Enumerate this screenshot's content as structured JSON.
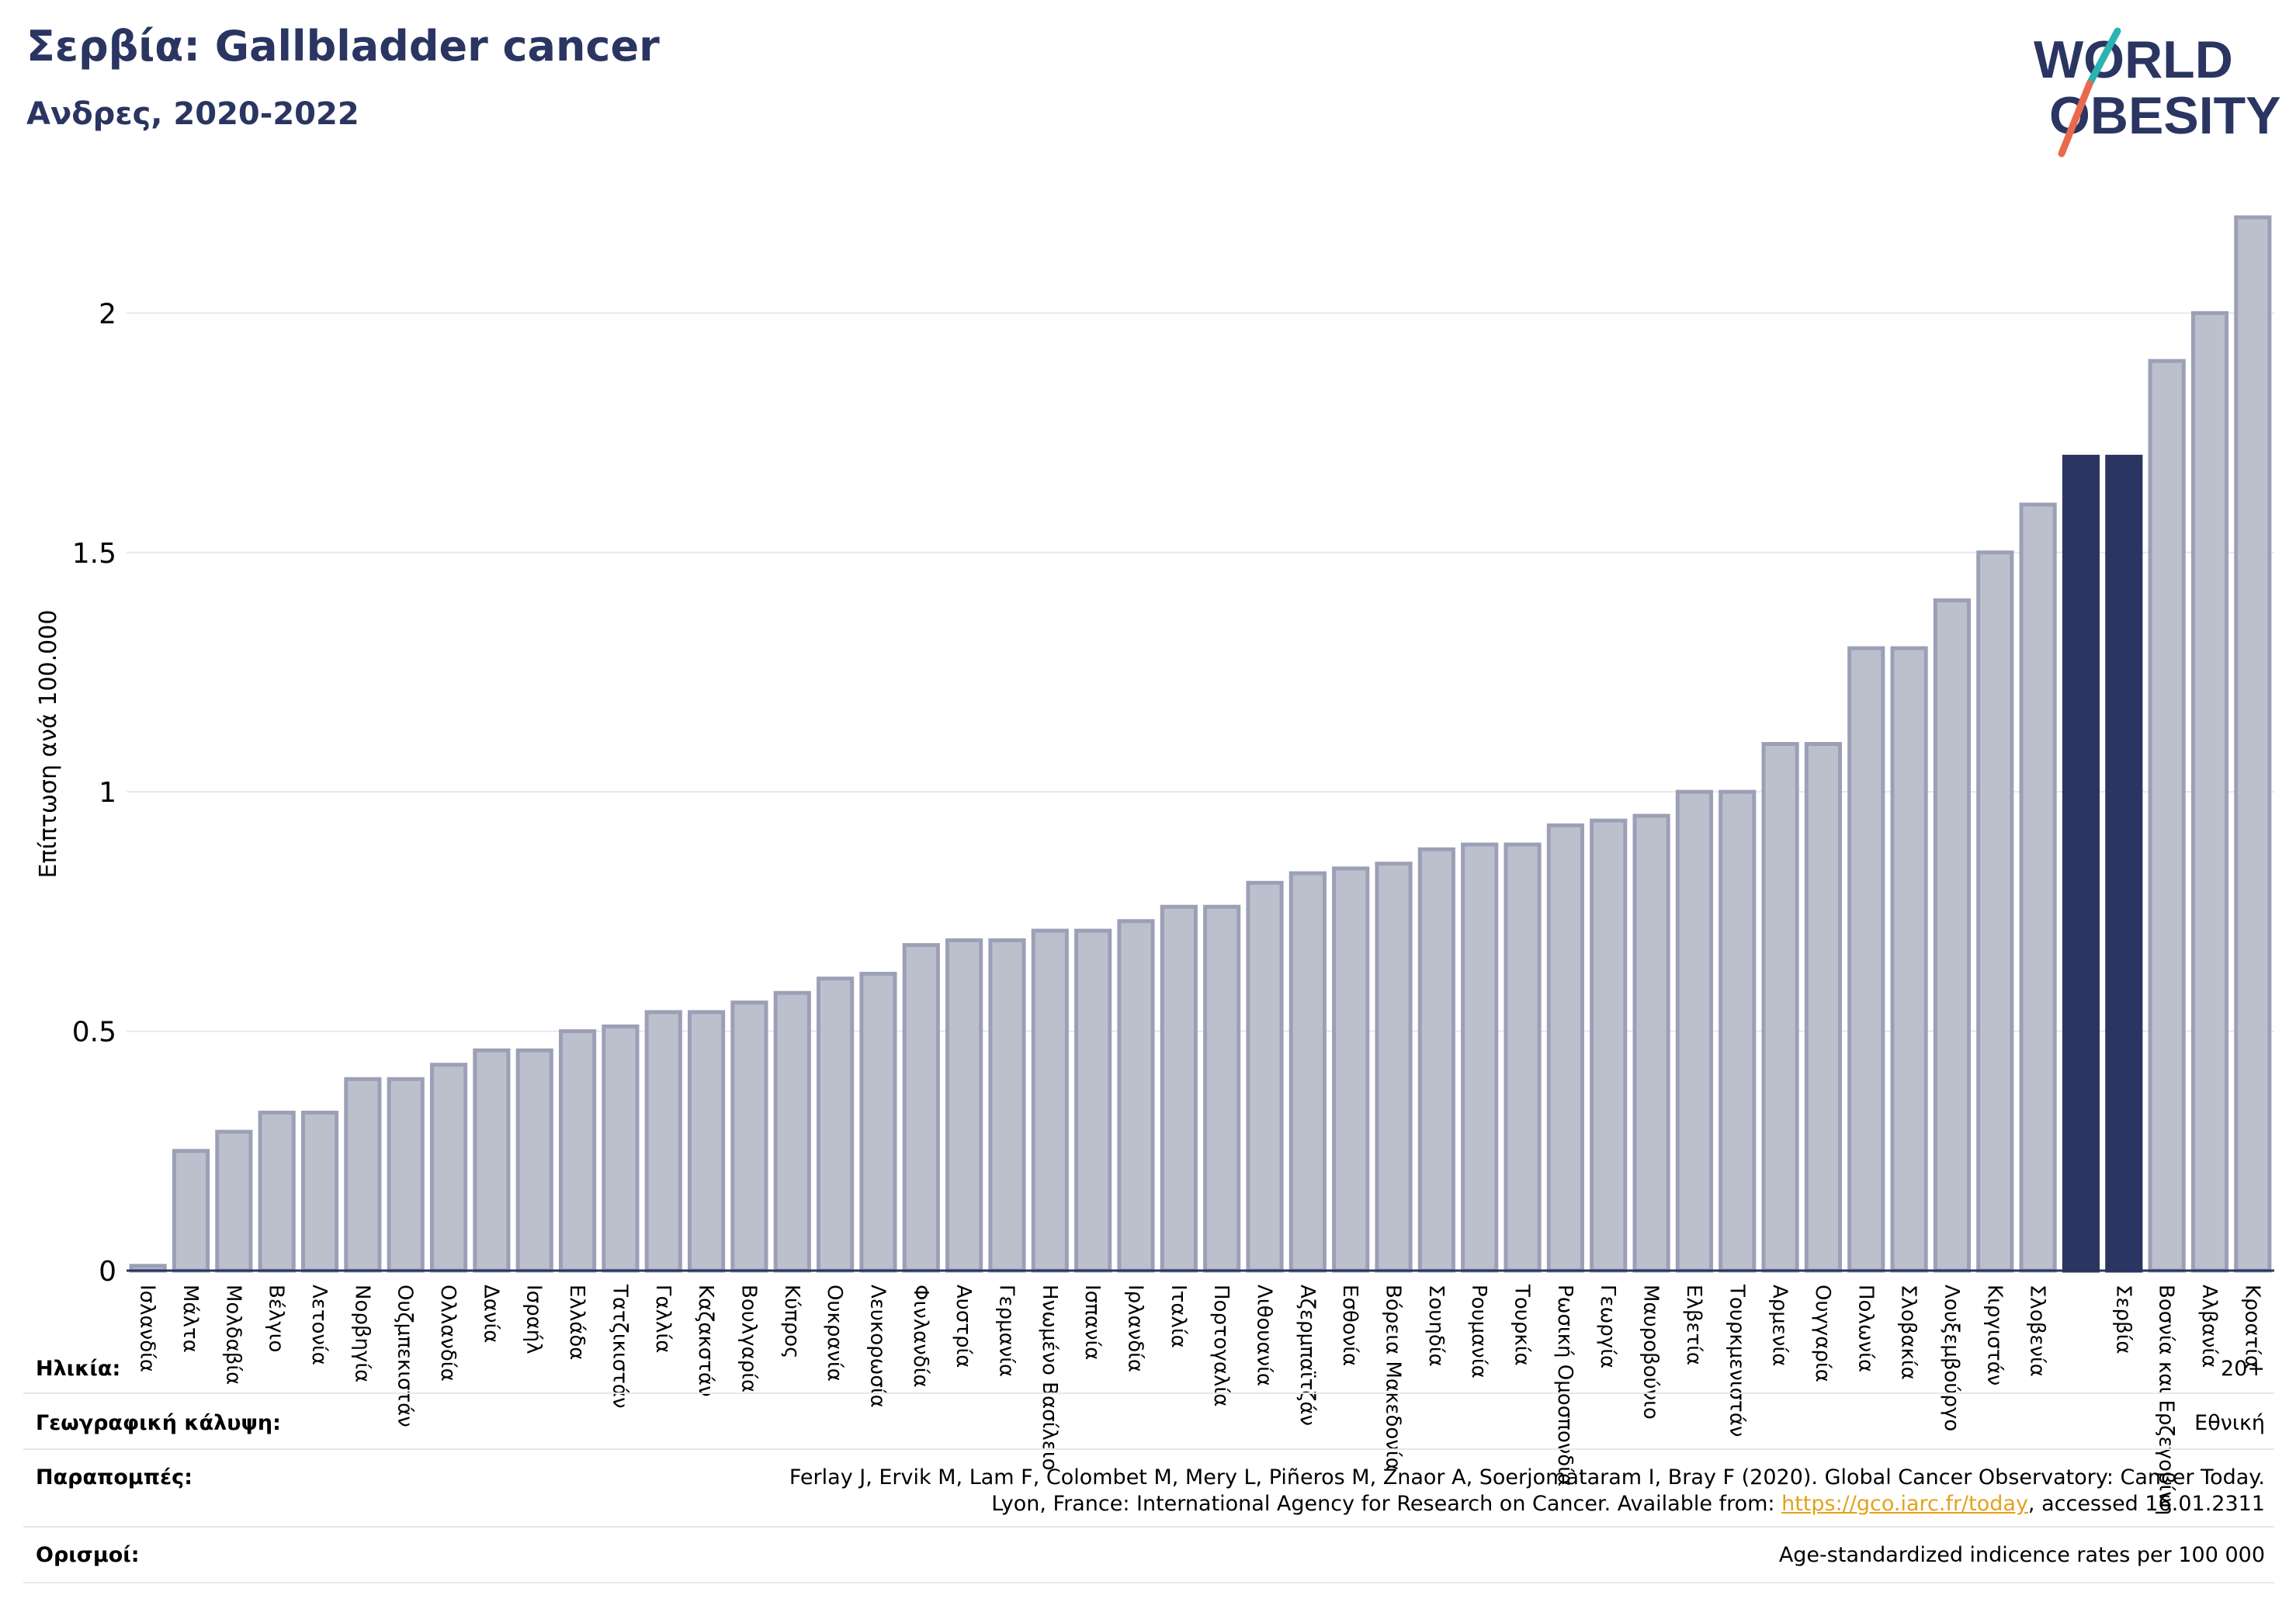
{
  "header": {
    "title": "Σερβία: Gallbladder cancer",
    "subtitle": "Ανδρες, 2020-2022"
  },
  "logo": {
    "line1": "WORLD",
    "line2": "OBESITY",
    "accent_teal": "#2bb3b1",
    "accent_coral": "#e8694d",
    "text_color": "#2a3561"
  },
  "colors": {
    "bar": "#bcc0cd",
    "bar_edge": "#9ba0b7",
    "highlight": "#2a3561",
    "grid": "#e6e8ef",
    "axis": "#2a3561"
  },
  "chart_data": {
    "type": "bar",
    "ylabel": "Επίπτωση ανά 100.000",
    "ylim": [
      0,
      2.2
    ],
    "yticks": [
      0,
      0.5,
      1,
      1.5,
      2
    ],
    "ytick_labels": [
      "0",
      "0.5",
      "1",
      "1.5",
      "2"
    ],
    "grid": true,
    "categories": [
      "Ισλανδία",
      "Μάλτα",
      "Μολδαβία",
      "Βέλγιο",
      "Λετονία",
      "Νορβηγία",
      "Ουζμπεκιστάν",
      "Ολλανδία",
      "Δανία",
      "Ισραήλ",
      "Ελλάδα",
      "Τατζικιστάν",
      "Γαλλία",
      "Καζακστάν",
      "Βουλγαρία",
      "Κύπρος",
      "Ουκρανία",
      "Λευκορωσία",
      "Φινλανδία",
      "Αυστρία",
      "Γερμανία",
      "Ηνωμένο Βασίλειο",
      "Ισπανία",
      "Ιρλανδία",
      "Ιταλία",
      "Πορτογαλία",
      "Λιθουανία",
      "Αζερμπαϊτζάν",
      "Εσθονία",
      "Βόρεια Μακεδονία",
      "Σουηδία",
      "Ρουμανία",
      "Τουρκία",
      "Ρωσική Ομοσπονδία",
      "Γεωργία",
      "Μαυροβούνιο",
      "Ελβετία",
      "Τουρκμενιστάν",
      "Αρμενία",
      "Ουγγαρία",
      "Πολωνία",
      "Σλοβακία",
      "Λουξεμβούργο",
      "Κιργιστάν",
      "Σλοβενία",
      "",
      "Σερβία",
      "Βοσνία και Ερζεγοβίνη",
      "Αλβανία",
      "Κροατία"
    ],
    "values": [
      0.01,
      0.25,
      0.29,
      0.33,
      0.33,
      0.4,
      0.4,
      0.43,
      0.46,
      0.46,
      0.5,
      0.51,
      0.54,
      0.54,
      0.56,
      0.58,
      0.61,
      0.62,
      0.68,
      0.69,
      0.69,
      0.71,
      0.71,
      0.73,
      0.76,
      0.76,
      0.81,
      0.83,
      0.84,
      0.85,
      0.88,
      0.89,
      0.89,
      0.93,
      0.94,
      0.95,
      1.0,
      1.0,
      1.1,
      1.1,
      1.3,
      1.3,
      1.4,
      1.5,
      1.6,
      1.7,
      1.7,
      1.9,
      2.0,
      2.2
    ],
    "highlight_indices": [
      45,
      46
    ]
  },
  "info": {
    "age_label": "Ηλικία:",
    "age_value": "20+",
    "coverage_label": "Γεωγραφική κάλυψη:",
    "coverage_value": "Εθνική",
    "refs_label": "Παραπομπές:",
    "refs_line1": "Ferlay J, Ervik M, Lam F, Colombet M, Mery L, Piñeros M, Znaor A, Soerjomataram I, Bray F (2020). Global Cancer Observatory: Cancer Today.",
    "refs_line2_pre": "Lyon, France: International Agency for Research on Cancer. Available from: ",
    "refs_link": "https://gco.iarc.fr/today",
    "refs_line2_post": ", accessed 16.01.2311",
    "defs_label": "Ορισμοί:",
    "defs_value": "Age-standardized indicence rates per 100 000"
  }
}
